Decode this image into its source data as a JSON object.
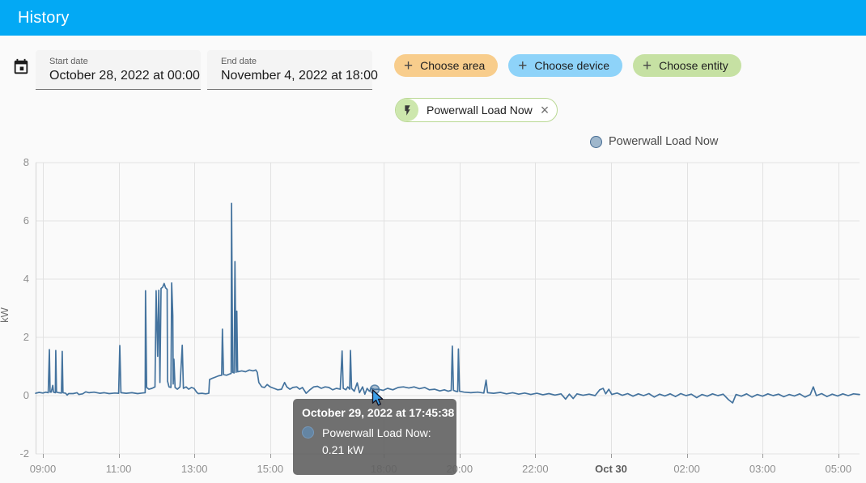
{
  "header": {
    "title": "History"
  },
  "filters": {
    "start": {
      "label": "Start date",
      "value": "October 28, 2022 at 00:00"
    },
    "end": {
      "label": "End date",
      "value": "November 4, 2022 at 18:00"
    },
    "chips": [
      {
        "label": "Choose area",
        "plus": "+",
        "color": "#f8cd8c"
      },
      {
        "label": "Choose device",
        "plus": "+",
        "color": "#8ed3f9"
      },
      {
        "label": "Choose entity",
        "plus": "+",
        "color": "#c6e1a3"
      }
    ],
    "selected_entity": {
      "label": "Powerwall Load Now",
      "close": "×"
    }
  },
  "legend": {
    "label": "Powerwall Load Now",
    "color": "#44739e"
  },
  "tooltip": {
    "title": "October 29, 2022 at 17:45:38",
    "text": "Powerwall Load Now: 0.21 kW",
    "series": "Powerwall Load Now",
    "value": "0.21",
    "unit": "kW"
  },
  "chart_data": {
    "type": "line",
    "title": "",
    "xlabel": "",
    "ylabel": "kW",
    "ylim": [
      -2,
      8
    ],
    "y_ticks": [
      8,
      6,
      4,
      2,
      0,
      -2
    ],
    "grid": true,
    "legend_position": "top-right",
    "x_unit": "real hours elapsed since Oct 29 2022 09:00 (local)",
    "x_ticks": [
      {
        "label": "09:00",
        "t": 0
      },
      {
        "label": "11:00",
        "t": 2
      },
      {
        "label": "13:00",
        "t": 4
      },
      {
        "label": "15:00",
        "t": 6
      },
      {
        "label": "18:00",
        "t": 9
      },
      {
        "label": "20:00",
        "t": 11
      },
      {
        "label": "22:00",
        "t": 13
      },
      {
        "label": "Oct 30",
        "t": 15,
        "bold": true
      },
      {
        "label": "02:00",
        "t": 17
      },
      {
        "label": "03:00",
        "t": 19
      },
      {
        "label": "05:00",
        "t": 21
      }
    ],
    "hover_point": {
      "t": 8.76,
      "v": 0.21,
      "time": "October 29, 2022 at 17:45:38"
    },
    "series": [
      {
        "name": "Powerwall Load Now",
        "color": "#44739e",
        "unit": "kW",
        "points": [
          [
            -0.19,
            0.08
          ],
          [
            -0.1,
            0.11
          ],
          [
            0,
            0.09
          ],
          [
            0.08,
            0.12
          ],
          [
            0.14,
            0.1
          ],
          [
            0.17,
            1.58
          ],
          [
            0.19,
            0.12
          ],
          [
            0.22,
            0.12
          ],
          [
            0.26,
            0.35
          ],
          [
            0.28,
            0.12
          ],
          [
            0.33,
            0.1
          ],
          [
            0.34,
            1.55
          ],
          [
            0.36,
            0.12
          ],
          [
            0.42,
            0.1
          ],
          [
            0.49,
            0.09
          ],
          [
            0.51,
            1.52
          ],
          [
            0.53,
            0.1
          ],
          [
            0.6,
            0.08
          ],
          [
            0.64,
            0.02
          ],
          [
            0.68,
            0.07
          ],
          [
            0.8,
            0.07
          ],
          [
            0.9,
            0.1
          ],
          [
            0.95,
            0.04
          ],
          [
            1.05,
            0.06
          ],
          [
            1.13,
            0.13
          ],
          [
            1.22,
            0.1
          ],
          [
            1.35,
            0.12
          ],
          [
            1.5,
            0.08
          ],
          [
            1.62,
            0.1
          ],
          [
            1.75,
            0.07
          ],
          [
            1.9,
            0.09
          ],
          [
            2,
            0.08
          ],
          [
            2.03,
            1.72
          ],
          [
            2.06,
            0.1
          ],
          [
            2.2,
            0.08
          ],
          [
            2.35,
            0.1
          ],
          [
            2.5,
            0.07
          ],
          [
            2.62,
            0.09
          ],
          [
            2.7,
            0.1
          ],
          [
            2.71,
            3.6
          ],
          [
            2.74,
            0.28
          ],
          [
            2.8,
            0.22
          ],
          [
            2.88,
            0.25
          ],
          [
            2.96,
            0.3
          ],
          [
            2.99,
            3.6
          ],
          [
            3.03,
            1.35
          ],
          [
            3.06,
            3.62
          ],
          [
            3.09,
            0.45
          ],
          [
            3.12,
            3.68
          ],
          [
            3.16,
            3.72
          ],
          [
            3.2,
            3.85
          ],
          [
            3.24,
            3.7
          ],
          [
            3.28,
            3.65
          ],
          [
            3.29,
            0.5
          ],
          [
            3.33,
            0.3
          ],
          [
            3.38,
            0.28
          ],
          [
            3.4,
            3.87
          ],
          [
            3.43,
            2.75
          ],
          [
            3.44,
            0.4
          ],
          [
            3.46,
            1.25
          ],
          [
            3.49,
            0.28
          ],
          [
            3.55,
            0.22
          ],
          [
            3.62,
            0.3
          ],
          [
            3.68,
            1.73
          ],
          [
            3.71,
            0.25
          ],
          [
            3.78,
            0.3
          ],
          [
            3.85,
            0.22
          ],
          [
            3.92,
            0.28
          ],
          [
            3.99,
            0.25
          ],
          [
            4.06,
            0.12
          ],
          [
            4.1,
            0.07
          ],
          [
            4.2,
            0.08
          ],
          [
            4.3,
            0.06
          ],
          [
            4.38,
            0.08
          ],
          [
            4.4,
            0.55
          ],
          [
            4.48,
            0.6
          ],
          [
            4.56,
            0.64
          ],
          [
            4.64,
            0.68
          ],
          [
            4.72,
            0.7
          ],
          [
            4.74,
            2.28
          ],
          [
            4.77,
            0.72
          ],
          [
            4.85,
            0.7
          ],
          [
            4.92,
            0.74
          ],
          [
            4.97,
            0.76
          ],
          [
            4.98,
            6.6
          ],
          [
            5.01,
            0.8
          ],
          [
            5.05,
            0.78
          ],
          [
            5.07,
            4.6
          ],
          [
            5.1,
            0.8
          ],
          [
            5.12,
            2.9
          ],
          [
            5.14,
            0.82
          ],
          [
            5.25,
            0.85
          ],
          [
            5.35,
            0.82
          ],
          [
            5.45,
            0.88
          ],
          [
            5.55,
            0.85
          ],
          [
            5.62,
            0.88
          ],
          [
            5.66,
            0.8
          ],
          [
            5.7,
            0.45
          ],
          [
            5.78,
            0.3
          ],
          [
            5.85,
            0.28
          ],
          [
            5.92,
            0.38
          ],
          [
            6,
            0.3
          ],
          [
            6.1,
            0.25
          ],
          [
            6.2,
            0.2
          ],
          [
            6.3,
            0.22
          ],
          [
            6.38,
            0.45
          ],
          [
            6.44,
            0.3
          ],
          [
            6.52,
            0.22
          ],
          [
            6.6,
            0.28
          ],
          [
            6.7,
            0.3
          ],
          [
            6.78,
            0.22
          ],
          [
            6.85,
            0.28
          ],
          [
            6.95,
            0.08
          ],
          [
            7.05,
            0.2
          ],
          [
            7.15,
            0.3
          ],
          [
            7.25,
            0.32
          ],
          [
            7.35,
            0.25
          ],
          [
            7.45,
            0.3
          ],
          [
            7.55,
            0.28
          ],
          [
            7.65,
            0.2
          ],
          [
            7.75,
            0.25
          ],
          [
            7.85,
            0.22
          ],
          [
            7.9,
            1.53
          ],
          [
            7.93,
            0.25
          ],
          [
            8,
            0.2
          ],
          [
            8.05,
            0.3
          ],
          [
            8.1,
            0.22
          ],
          [
            8.12,
            1.55
          ],
          [
            8.15,
            0.25
          ],
          [
            8.22,
            0.15
          ],
          [
            8.3,
            0.44
          ],
          [
            8.36,
            0.1
          ],
          [
            8.44,
            0.3
          ],
          [
            8.5,
            0.05
          ],
          [
            8.56,
            0.25
          ],
          [
            8.62,
            0.15
          ],
          [
            8.68,
            0.25
          ],
          [
            8.76,
            0.21
          ],
          [
            8.86,
            0.22
          ],
          [
            8.98,
            0.18
          ],
          [
            9.1,
            0.25
          ],
          [
            9.24,
            0.2
          ],
          [
            9.38,
            0.28
          ],
          [
            9.52,
            0.3
          ],
          [
            9.66,
            0.26
          ],
          [
            9.8,
            0.3
          ],
          [
            9.94,
            0.24
          ],
          [
            10.08,
            0.28
          ],
          [
            10.2,
            0.2
          ],
          [
            10.34,
            0.22
          ],
          [
            10.48,
            0.16
          ],
          [
            10.6,
            0.2
          ],
          [
            10.7,
            0.15
          ],
          [
            10.78,
            0.18
          ],
          [
            10.81,
            1.7
          ],
          [
            10.84,
            0.18
          ],
          [
            10.9,
            0.15
          ],
          [
            10.95,
            0.14
          ],
          [
            10.97,
            1.6
          ],
          [
            11,
            0.15
          ],
          [
            11.12,
            0.12
          ],
          [
            11.3,
            0.1
          ],
          [
            11.48,
            0.12
          ],
          [
            11.64,
            0.09
          ],
          [
            11.7,
            0.53
          ],
          [
            11.74,
            0.1
          ],
          [
            11.9,
            0.08
          ],
          [
            12.08,
            0.11
          ],
          [
            12.24,
            0.06
          ],
          [
            12.4,
            0.1
          ],
          [
            12.56,
            0.05
          ],
          [
            12.72,
            0.09
          ],
          [
            12.88,
            0.04
          ],
          [
            13.04,
            0.08
          ],
          [
            13.2,
            0.03
          ],
          [
            13.36,
            0.07
          ],
          [
            13.52,
            0.02
          ],
          [
            13.68,
            0.06
          ],
          [
            13.8,
            -0.12
          ],
          [
            13.9,
            0.05
          ],
          [
            14,
            -0.1
          ],
          [
            14.1,
            0.06
          ],
          [
            14.26,
            0.01
          ],
          [
            14.42,
            0.05
          ],
          [
            14.58,
            0
          ],
          [
            14.7,
            0.2
          ],
          [
            14.79,
            0.25
          ],
          [
            14.86,
            0.06
          ],
          [
            14.94,
            0.22
          ],
          [
            15.02,
            0.04
          ],
          [
            15.16,
            0.09
          ],
          [
            15.3,
            0.01
          ],
          [
            15.44,
            0.07
          ],
          [
            15.58,
            -0.02
          ],
          [
            15.72,
            0.06
          ],
          [
            15.86,
            0
          ],
          [
            16,
            0.07
          ],
          [
            16.14,
            -0.05
          ],
          [
            16.28,
            0.05
          ],
          [
            16.42,
            -0.01
          ],
          [
            16.56,
            0.06
          ],
          [
            16.7,
            -0.03
          ],
          [
            16.84,
            0.07
          ],
          [
            16.98,
            0
          ],
          [
            17.12,
            0.05
          ],
          [
            17.26,
            -0.07
          ],
          [
            17.4,
            0.04
          ],
          [
            17.54,
            -0.02
          ],
          [
            17.68,
            0.06
          ],
          [
            17.82,
            0
          ],
          [
            17.96,
            0.05
          ],
          [
            18.1,
            -0.14
          ],
          [
            18.21,
            -0.25
          ],
          [
            18.3,
            0.04
          ],
          [
            18.44,
            -0.02
          ],
          [
            18.58,
            0.06
          ],
          [
            18.72,
            -0.05
          ],
          [
            18.86,
            0.04
          ],
          [
            19,
            -0.02
          ],
          [
            19.14,
            0.06
          ],
          [
            19.28,
            0
          ],
          [
            19.42,
            0.05
          ],
          [
            19.56,
            -0.04
          ],
          [
            19.7,
            0.04
          ],
          [
            19.84,
            -0.01
          ],
          [
            19.98,
            0.06
          ],
          [
            20.12,
            -0.05
          ],
          [
            20.26,
            0.04
          ],
          [
            20.34,
            0.3
          ],
          [
            20.42,
            0
          ],
          [
            20.56,
            0.07
          ],
          [
            20.7,
            -0.03
          ],
          [
            20.84,
            0.05
          ],
          [
            20.98,
            -0.01
          ],
          [
            21.12,
            0.06
          ],
          [
            21.26,
            0
          ],
          [
            21.4,
            0.06
          ],
          [
            21.56,
            0.04
          ]
        ]
      }
    ]
  }
}
